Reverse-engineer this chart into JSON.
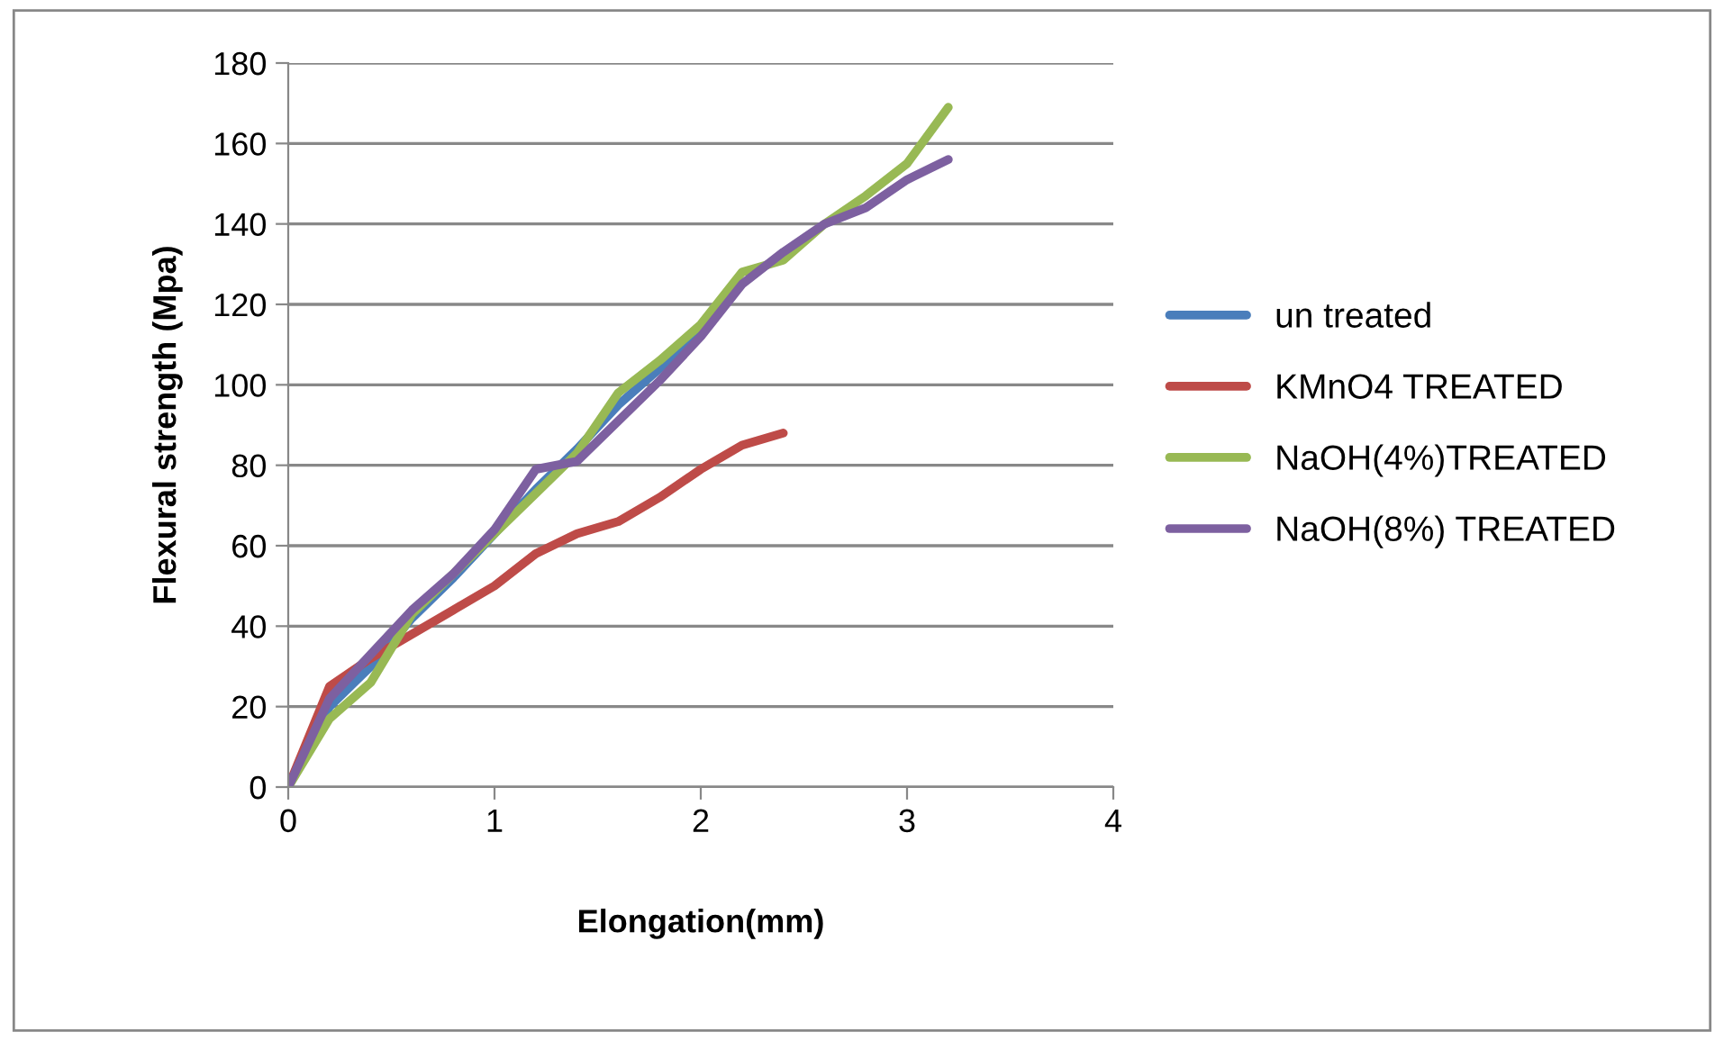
{
  "chart_data": {
    "type": "line",
    "xlabel": "Elongation(mm)",
    "ylabel": "Flexural strength (Mpa)",
    "xlim": [
      0,
      4
    ],
    "xticks": [
      0,
      1,
      2,
      3,
      4
    ],
    "ylim": [
      0,
      180
    ],
    "yticks": [
      0,
      20,
      40,
      60,
      80,
      100,
      120,
      140,
      160,
      180
    ],
    "grid": "y",
    "legend": "right",
    "marker": "none",
    "line_style": "solid",
    "series": [
      {
        "name": "un treated",
        "color": "#4a7ebb",
        "x": [
          0,
          0.2,
          0.4,
          0.6,
          0.8,
          1.0,
          1.2,
          1.4,
          1.6,
          1.8,
          2.0
        ],
        "values": [
          0,
          20,
          30,
          42,
          52,
          63,
          74,
          84,
          95,
          104,
          113
        ]
      },
      {
        "name": "KMnO4 TREATED",
        "color": "#be4b48",
        "x": [
          0,
          0.2,
          0.4,
          0.6,
          0.8,
          1.0,
          1.2,
          1.4,
          1.6,
          1.8,
          2.0,
          2.2,
          2.4
        ],
        "values": [
          0,
          25,
          32,
          38,
          44,
          50,
          58,
          63,
          66,
          72,
          79,
          85,
          88
        ]
      },
      {
        "name": "NaOH(4%)TREATED",
        "color": "#98b954",
        "x": [
          0,
          0.2,
          0.4,
          0.6,
          0.8,
          1.0,
          1.2,
          1.4,
          1.6,
          1.8,
          2.0,
          2.2,
          2.4,
          2.6,
          2.8,
          3.0,
          3.2
        ],
        "values": [
          0,
          17,
          26,
          43,
          53,
          63,
          73,
          83,
          98,
          106,
          115,
          128,
          131,
          140,
          147,
          155,
          169
        ]
      },
      {
        "name": "NaOH(8%) TREATED",
        "color": "#7d60a0",
        "x": [
          0,
          0.2,
          0.4,
          0.6,
          0.8,
          1.0,
          1.2,
          1.4,
          1.6,
          1.8,
          2.0,
          2.2,
          2.4,
          2.6,
          2.8,
          3.0,
          3.2
        ],
        "values": [
          0,
          22,
          33,
          44,
          53,
          64,
          79,
          81,
          91,
          101,
          112,
          125,
          133,
          140,
          144,
          151,
          156
        ]
      }
    ]
  }
}
